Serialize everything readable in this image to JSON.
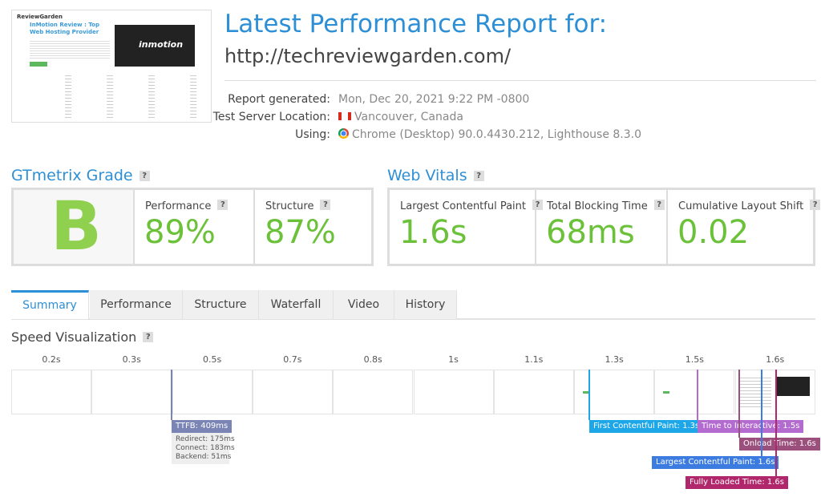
{
  "thumbnail": {
    "logo": "ReviewGarden",
    "headline": "InMotion Review : Top Web Hosting Provider",
    "banner": "inmotion"
  },
  "help": "?",
  "header": {
    "title": "Latest Performance Report for:",
    "url": "http://techreviewgarden.com/"
  },
  "report_info": [
    {
      "label": "Report generated:",
      "value": "Mon, Dec 20, 2021 9:22 PM -0800"
    },
    {
      "label": "Test Server Location:",
      "value": "Vancouver, Canada"
    },
    {
      "label": "Using:",
      "value": "Chrome (Desktop) 90.0.4430.212, Lighthouse 8.3.0"
    }
  ],
  "grade": {
    "title": "GTmetrix Grade",
    "letter": "B",
    "metrics": [
      {
        "label": "Performance",
        "value": "89%"
      },
      {
        "label": "Structure",
        "value": "87%"
      }
    ]
  },
  "web_vitals": {
    "title": "Web Vitals",
    "metrics": [
      {
        "label": "Largest Contentful Paint",
        "value": "1.6s"
      },
      {
        "label": "Total Blocking Time",
        "value": "68ms"
      },
      {
        "label": "Cumulative Layout Shift",
        "value": "0.02"
      }
    ]
  },
  "tabs": [
    "Summary",
    "Performance",
    "Structure",
    "Waterfall",
    "Video",
    "History"
  ],
  "speed_visualization": {
    "title": "Speed Visualization",
    "frame_times": [
      "0.2s",
      "0.3s",
      "0.5s",
      "0.7s",
      "0.8s",
      "1s",
      "1.1s",
      "1.3s",
      "1.5s",
      "1.6s"
    ],
    "milestones": [
      {
        "label": "TTFB: 409ms",
        "details": [
          "Redirect: 175ms",
          "Connect: 183ms",
          "Backend: 51ms"
        ]
      },
      {
        "label": "First Contentful Paint: 1.3s"
      },
      {
        "label": "Time to Interactive: 1.5s"
      },
      {
        "label": "Onload Time: 1.6s"
      },
      {
        "label": "Largest Contentful Paint: 1.6s"
      },
      {
        "label": "Fully Loaded Time: 1.6s"
      }
    ]
  }
}
